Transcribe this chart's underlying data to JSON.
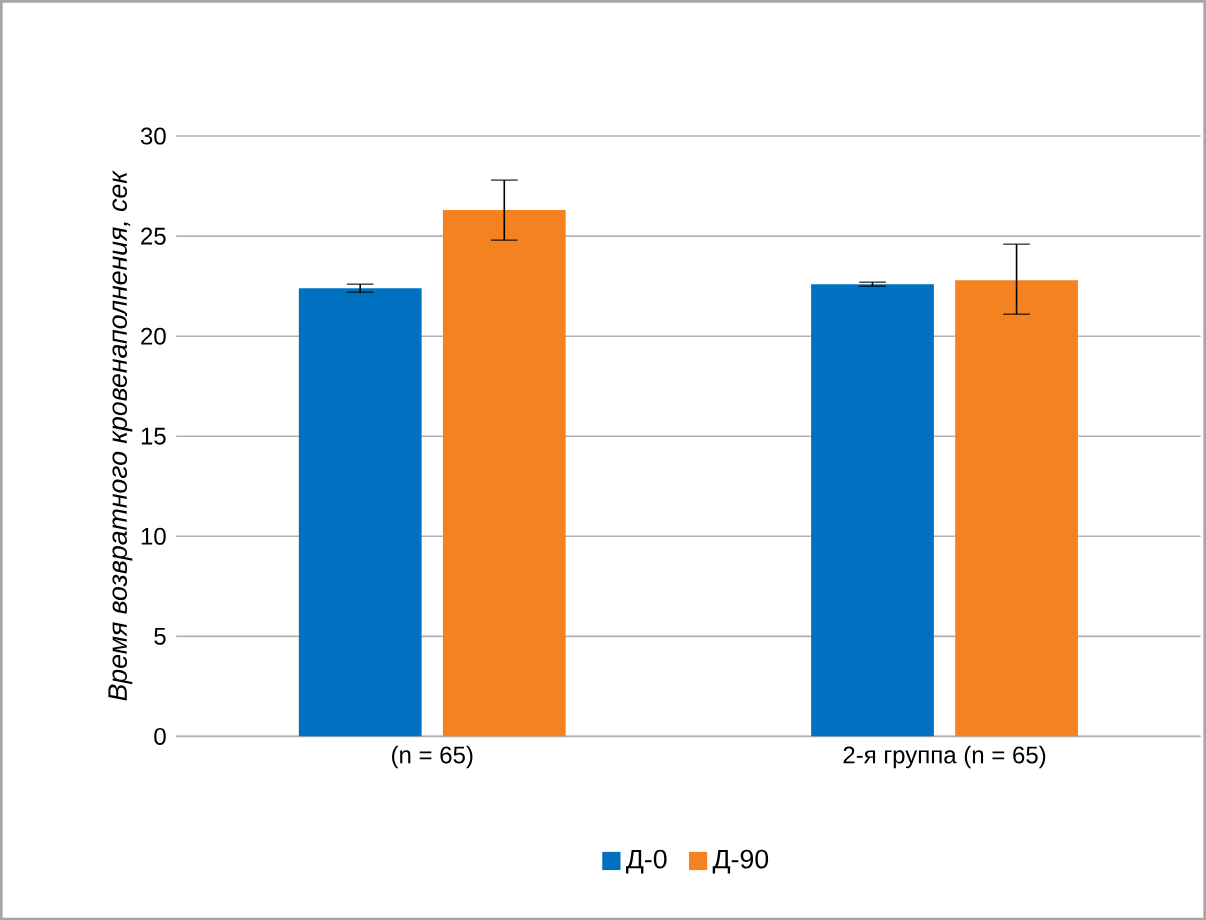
{
  "chart_data": {
    "type": "bar",
    "ylabel": "Время возвратного кровенаполнения, сек",
    "categories": [
      "(n = 65)",
      "2-я группа (n = 65)"
    ],
    "series": [
      {
        "name": "Д-0",
        "color": "#0070c0",
        "values": [
          22.4,
          22.6
        ],
        "errors": [
          0.2,
          0.1
        ]
      },
      {
        "name": "Д-90",
        "color": "#f58220",
        "values": [
          26.3,
          22.8
        ],
        "errors": [
          [
            24.8,
            27.8
          ],
          [
            21.1,
            24.6
          ]
        ]
      }
    ],
    "ylim": [
      0,
      30
    ],
    "yticks": [
      0,
      5,
      10,
      15,
      20,
      25,
      30
    ],
    "grid": "y",
    "legend": "bottom"
  }
}
